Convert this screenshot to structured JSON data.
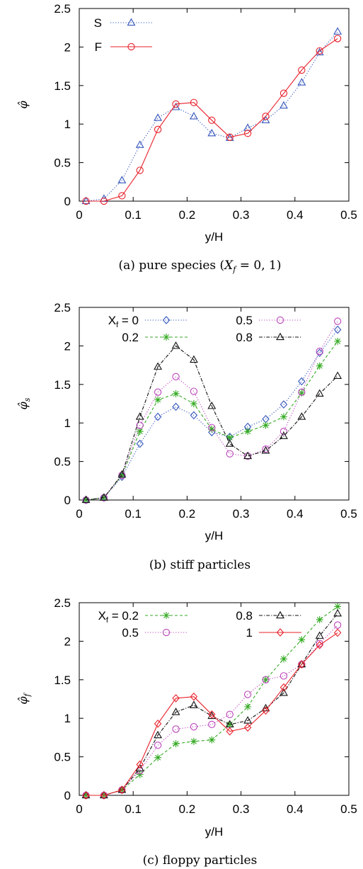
{
  "colors": {
    "S": "#3355bb",
    "F": "#e8202a",
    "x0": "#3355bb",
    "x02": "#33aa22",
    "x05": "#bb44bb",
    "x08": "#111111",
    "x1": "#e8202a"
  },
  "chart_data": [
    {
      "id": "a",
      "type": "line",
      "xlabel": "y/H",
      "ylabel": "φ̂",
      "ylabel_sub": "",
      "xlim": [
        0,
        0.5
      ],
      "ylim": [
        0,
        2.5
      ],
      "xticks": [
        "0",
        "0.1",
        "0.2",
        "0.3",
        "0.4",
        "0.5"
      ],
      "yticks": [
        "0",
        "0.5",
        "1",
        "1.5",
        "2",
        "2.5"
      ],
      "grid": false,
      "caption_prefix": "(a)  pure species (",
      "caption_math_var": "X",
      "caption_math_sub": "f",
      "caption_math_rest": " = 0, 1)",
      "caption_suffix": ")",
      "legend_layout": "one-column-top-left",
      "legend_prefix": "",
      "legend_prefix_sub": "",
      "legend_prefix_suffix": "",
      "x": [
        0.0125,
        0.0458,
        0.0792,
        0.1125,
        0.1458,
        0.1792,
        0.2125,
        0.2458,
        0.2792,
        0.3125,
        0.3458,
        0.3792,
        0.4125,
        0.4458,
        0.4792
      ],
      "series": [
        {
          "name": "S",
          "colorKey": "S",
          "style": "dotted",
          "marker": "triangle",
          "values": [
            0.0,
            0.03,
            0.27,
            0.73,
            1.08,
            1.22,
            1.1,
            0.88,
            0.82,
            0.95,
            1.05,
            1.24,
            1.54,
            1.93,
            2.2
          ]
        },
        {
          "name": "F",
          "colorKey": "F",
          "style": "solid",
          "marker": "circle",
          "values": [
            0.0,
            0.0,
            0.07,
            0.4,
            0.93,
            1.26,
            1.28,
            1.05,
            0.83,
            0.88,
            1.1,
            1.4,
            1.7,
            1.95,
            2.11
          ]
        }
      ]
    },
    {
      "id": "b",
      "type": "line",
      "xlabel": "y/H",
      "ylabel": "φ̂",
      "ylabel_sub": "s",
      "xlim": [
        0,
        0.5
      ],
      "ylim": [
        0,
        2.5
      ],
      "xticks": [
        "0",
        "0.1",
        "0.2",
        "0.3",
        "0.4",
        "0.5"
      ],
      "yticks": [
        "0",
        "0.5",
        "1",
        "1.5",
        "2",
        "2.5"
      ],
      "grid": false,
      "caption_prefix": "(b)  stiff particles",
      "caption_math_var": "",
      "caption_math_sub": "",
      "caption_math_rest": "",
      "caption_suffix": "",
      "legend_layout": "two-columns-top",
      "legend_prefix": "X",
      "legend_prefix_sub": "f",
      "legend_prefix_suffix": " = ",
      "x": [
        0.0125,
        0.0458,
        0.0792,
        0.1125,
        0.1458,
        0.1792,
        0.2125,
        0.2458,
        0.2792,
        0.3125,
        0.3458,
        0.3792,
        0.4125,
        0.4458,
        0.4792
      ],
      "series": [
        {
          "name": "0",
          "colorKey": "x0",
          "style": "dotted",
          "marker": "diamond",
          "values": [
            0.0,
            0.03,
            0.3,
            0.73,
            1.08,
            1.21,
            1.1,
            0.88,
            0.82,
            0.95,
            1.05,
            1.24,
            1.54,
            1.91,
            2.21
          ]
        },
        {
          "name": "0.2",
          "colorKey": "x02",
          "style": "dashed",
          "marker": "star",
          "values": [
            0.0,
            0.03,
            0.32,
            0.89,
            1.3,
            1.38,
            1.25,
            0.92,
            0.81,
            0.89,
            0.97,
            1.08,
            1.39,
            1.74,
            2.06
          ]
        },
        {
          "name": "0.5",
          "colorKey": "x05",
          "style": "dotted",
          "marker": "circle",
          "values": [
            0.0,
            0.03,
            0.32,
            0.97,
            1.4,
            1.6,
            1.41,
            0.94,
            0.6,
            0.57,
            0.66,
            0.89,
            1.4,
            1.93,
            2.32
          ]
        },
        {
          "name": "0.8",
          "colorKey": "x08",
          "style": "dashdot",
          "marker": "triangle",
          "values": [
            0.0,
            0.03,
            0.33,
            1.08,
            1.73,
            2.0,
            1.82,
            1.22,
            0.73,
            0.57,
            0.64,
            0.83,
            1.08,
            1.38,
            1.61
          ]
        }
      ]
    },
    {
      "id": "c",
      "type": "line",
      "xlabel": "y/H",
      "ylabel": "φ̂",
      "ylabel_sub": "f",
      "xlim": [
        0,
        0.5
      ],
      "ylim": [
        0,
        2.5
      ],
      "xticks": [
        "0",
        "0.1",
        "0.2",
        "0.3",
        "0.4",
        "0.5"
      ],
      "yticks": [
        "0",
        "0.5",
        "1",
        "1.5",
        "2",
        "2.5"
      ],
      "grid": false,
      "caption_prefix": "(c)  floppy particles",
      "caption_math_var": "",
      "caption_math_sub": "",
      "caption_math_rest": "",
      "caption_suffix": "",
      "legend_layout": "two-columns-top",
      "legend_prefix": "X",
      "legend_prefix_sub": "f",
      "legend_prefix_suffix": " = ",
      "x": [
        0.0125,
        0.0458,
        0.0792,
        0.1125,
        0.1458,
        0.1792,
        0.2125,
        0.2458,
        0.2792,
        0.3125,
        0.3458,
        0.3792,
        0.4125,
        0.4458,
        0.4792
      ],
      "series": [
        {
          "name": "0.2",
          "colorKey": "x02",
          "style": "dashed",
          "marker": "star",
          "values": [
            0.0,
            0.0,
            0.07,
            0.27,
            0.49,
            0.67,
            0.7,
            0.72,
            0.92,
            1.15,
            1.5,
            1.77,
            2.02,
            2.28,
            2.45
          ]
        },
        {
          "name": "0.5",
          "colorKey": "x05",
          "style": "dotted",
          "marker": "circle",
          "values": [
            0.0,
            0.0,
            0.07,
            0.32,
            0.65,
            0.86,
            0.89,
            0.92,
            1.05,
            1.31,
            1.5,
            1.55,
            1.7,
            1.97,
            2.21
          ]
        },
        {
          "name": "0.8",
          "colorKey": "x08",
          "style": "dashdot",
          "marker": "triangle",
          "values": [
            0.0,
            0.0,
            0.07,
            0.35,
            0.78,
            1.08,
            1.17,
            1.03,
            0.92,
            0.97,
            1.13,
            1.33,
            1.7,
            2.07,
            2.36
          ]
        },
        {
          "name": "1",
          "colorKey": "x1",
          "style": "solid",
          "marker": "diamond",
          "values": [
            0.0,
            0.0,
            0.07,
            0.4,
            0.93,
            1.26,
            1.28,
            1.05,
            0.83,
            0.88,
            1.1,
            1.4,
            1.7,
            1.95,
            2.11
          ]
        }
      ]
    }
  ]
}
